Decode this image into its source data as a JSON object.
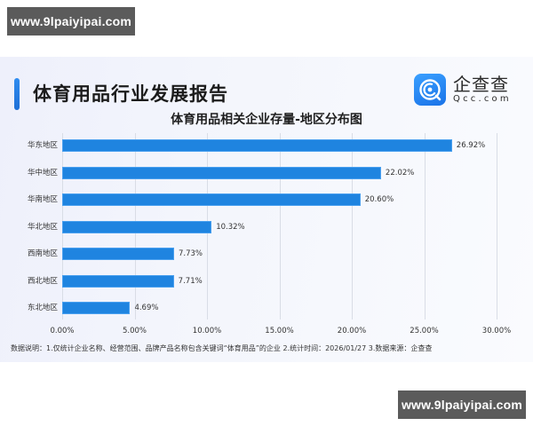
{
  "watermark": {
    "top": "www.9lpaiyipai.com",
    "bottom": "www.9lpaiyipai.com"
  },
  "header": {
    "report_title": "体育用品行业发展报告",
    "logo_cn": "企查查",
    "logo_en": "Qcc.com",
    "accent_color": "#1e7ee6"
  },
  "chart_title": "体育用品相关企业存量-地区分布图",
  "footnote": "数据说明：1.仅统计企业名称、经营范围、品牌产品名称包含关键词“体育用品”的企业   2.统计时间：2026/01/27    3.数据来源：企查查",
  "chart_data": {
    "type": "bar",
    "orientation": "horizontal",
    "title": "体育用品相关企业存量-地区分布图",
    "categories": [
      "华东地区",
      "华中地区",
      "华南地区",
      "华北地区",
      "西南地区",
      "西北地区",
      "东北地区"
    ],
    "values": [
      26.92,
      22.02,
      20.6,
      10.32,
      7.73,
      7.71,
      4.69
    ],
    "value_labels": [
      "26.92%",
      "22.02%",
      "20.60%",
      "10.32%",
      "7.73%",
      "7.71%",
      "4.69%"
    ],
    "xlabel": "",
    "ylabel": "",
    "xlim": [
      0,
      30
    ],
    "ticks": [
      0,
      5,
      10,
      15,
      20,
      25,
      30
    ],
    "tick_labels": [
      "0.00%",
      "5.00%",
      "10.00%",
      "15.00%",
      "20.00%",
      "25.00%",
      "30.00%"
    ],
    "grid": true,
    "legend": "none",
    "bar_color": "#1f84e0"
  }
}
